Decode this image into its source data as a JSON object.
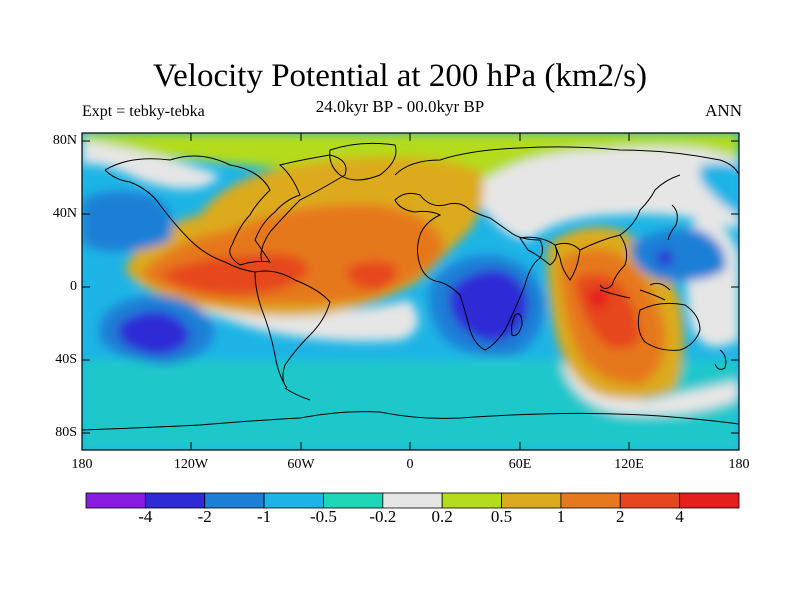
{
  "title": "Velocity Potential at 200 hPa (km2/s)",
  "subtitle": "24.0kyr BP - 00.0kyr BP",
  "expt_label": "Expt = tebky-tebka",
  "season": "ANN",
  "lat_labels": [
    "80N",
    "40N",
    "0",
    "40S",
    "80S"
  ],
  "lon_labels": [
    "180",
    "120W",
    "60W",
    "0",
    "60E",
    "120E",
    "180"
  ],
  "colorbar": {
    "labels": [
      "-4",
      "-2",
      "-1",
      "-0.5",
      "-0.2",
      "0.2",
      "0.5",
      "1",
      "2",
      "4"
    ],
    "colors": [
      "#8a1be0",
      "#2d2ad6",
      "#1e7fd6",
      "#1eb4e6",
      "#20d6b8",
      "#e6e6e6",
      "#b4dc1e",
      "#dcaa1e",
      "#e6781e",
      "#e6461e",
      "#e61e1e"
    ]
  }
}
